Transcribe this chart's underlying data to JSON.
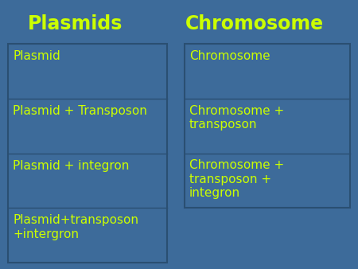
{
  "background_color": "#3d6b9a",
  "title_left": "Plasmids",
  "title_right": "Chromosome",
  "title_color": "#ccff00",
  "title_fontsize": 17,
  "cell_text_color": "#ccff00",
  "cell_text_fontsize": 11,
  "border_color": "#2a4f72",
  "cell_bg_color": "#3d6b9a",
  "left_cells": [
    "Plasmid",
    "Plasmid + Transposon",
    "Plasmid + integron",
    "Plasmid+transposon\n+intergron"
  ],
  "right_cells": [
    "Chromosome",
    "Chromosome +\ntransposon",
    "Chromosome +\ntransposon +\nintegron"
  ],
  "fig_width": 4.5,
  "fig_height": 3.38,
  "dpi": 100
}
